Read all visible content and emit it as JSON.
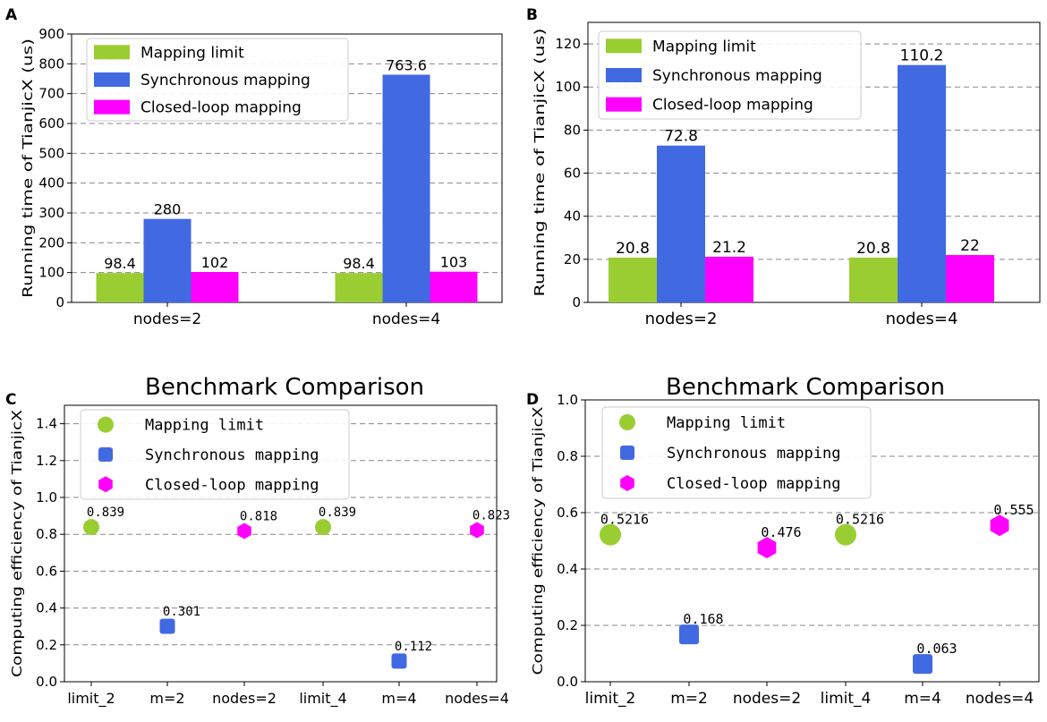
{
  "chart_data": [
    {
      "panel": "A",
      "type": "bar",
      "title": "",
      "xlabel": "",
      "ylabel": "Running time of TianjicX (us)",
      "categories": [
        "nodes=2",
        "nodes=4"
      ],
      "ylim": [
        0,
        900
      ],
      "yticks": [
        "0",
        "100",
        "200",
        "300",
        "400",
        "500",
        "600",
        "700",
        "800",
        "900"
      ],
      "grid": true,
      "legend_position": "top-left",
      "series": [
        {
          "name": "Mapping limit",
          "color": "#9acd32",
          "values": [
            98.4,
            98.4
          ],
          "labels": [
            "98.4",
            "98.4"
          ]
        },
        {
          "name": "Synchronous mapping",
          "color": "#4169e1",
          "values": [
            280,
            763.6
          ],
          "labels": [
            "280",
            "763.6"
          ]
        },
        {
          "name": "Closed-loop mapping",
          "color": "#ff00ff",
          "values": [
            102,
            103
          ],
          "labels": [
            "102",
            "103"
          ]
        }
      ]
    },
    {
      "panel": "B",
      "type": "bar",
      "title": "",
      "xlabel": "",
      "ylabel": "Running time of TianjicX (us)",
      "categories": [
        "nodes=2",
        "nodes=4"
      ],
      "ylim": [
        0,
        130
      ],
      "yticks": [
        "0",
        "20",
        "40",
        "60",
        "80",
        "100",
        "120"
      ],
      "grid": true,
      "legend_position": "top-left",
      "series": [
        {
          "name": "Mapping limit",
          "color": "#9acd32",
          "values": [
            20.8,
            20.8
          ],
          "labels": [
            "20.8",
            "20.8"
          ]
        },
        {
          "name": "Synchronous mapping",
          "color": "#4169e1",
          "values": [
            72.8,
            110.2
          ],
          "labels": [
            "72.8",
            "110.2"
          ]
        },
        {
          "name": "Closed-loop mapping",
          "color": "#ff00ff",
          "values": [
            21.2,
            22
          ],
          "labels": [
            "21.2",
            "22"
          ]
        }
      ]
    },
    {
      "panel": "C",
      "type": "scatter",
      "title": "Benchmark Comparison",
      "xlabel": "",
      "ylabel": "Computing efficiency of TianjicX",
      "categories": [
        "limit_2",
        "m=2",
        "nodes=2",
        "limit_4",
        "m=4",
        "nodes=4"
      ],
      "ylim": [
        0,
        1.5
      ],
      "yticks": [
        "0.0",
        "0.2",
        "0.4",
        "0.6",
        "0.8",
        "1.0",
        "1.2",
        "1.4"
      ],
      "grid": true,
      "legend_position": "top-left",
      "series": [
        {
          "name": "Mapping limit",
          "color": "#9acd32",
          "marker": "circle",
          "points": [
            [
              0,
              0.839
            ],
            [
              3,
              0.839
            ]
          ],
          "labels": [
            "0.839",
            "0.839"
          ]
        },
        {
          "name": "Synchronous mapping",
          "color": "#4169e1",
          "marker": "square",
          "points": [
            [
              1,
              0.301
            ],
            [
              4,
              0.112
            ]
          ],
          "labels": [
            "0.301",
            "0.112"
          ]
        },
        {
          "name": "Closed-loop mapping",
          "color": "#ff00ff",
          "marker": "hexagon",
          "points": [
            [
              2,
              0.818
            ],
            [
              5,
              0.823
            ]
          ],
          "labels": [
            "0.818",
            "0.823"
          ]
        }
      ]
    },
    {
      "panel": "D",
      "type": "scatter",
      "title": "Benchmark Comparison",
      "xlabel": "",
      "ylabel": "Computing  efficiency  of  TianjicX",
      "categories": [
        "limit_2",
        "m=2",
        "nodes=2",
        "limit_4",
        "m=4",
        "nodes=4"
      ],
      "ylim": [
        0,
        1.0
      ],
      "yticks": [
        "0.0",
        "0.2",
        "0.4",
        "0.6",
        "0.8",
        "1.0"
      ],
      "grid": true,
      "legend_position": "top-left",
      "series": [
        {
          "name": "Mapping limit",
          "color": "#9acd32",
          "marker": "circle",
          "points": [
            [
              0,
              0.5216
            ],
            [
              3,
              0.5216
            ]
          ],
          "labels": [
            "0.5216",
            "0.5216"
          ]
        },
        {
          "name": "Synchronous mapping",
          "color": "#4169e1",
          "marker": "square",
          "points": [
            [
              1,
              0.168
            ],
            [
              4,
              0.063
            ]
          ],
          "labels": [
            "0.168",
            "0.063"
          ]
        },
        {
          "name": "Closed-loop mapping",
          "color": "#ff00ff",
          "marker": "hexagon",
          "points": [
            [
              2,
              0.476
            ],
            [
              5,
              0.555
            ]
          ],
          "labels": [
            "0.476",
            "0.555"
          ]
        }
      ]
    }
  ]
}
